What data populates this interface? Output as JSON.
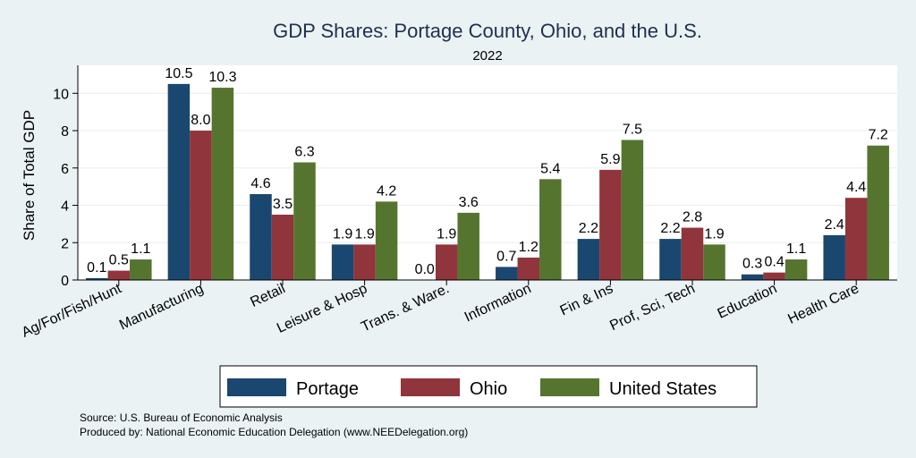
{
  "colors": {
    "background": "#eaf2f3",
    "plot_background": "#ffffff",
    "portage": "#1a476f",
    "ohio": "#90353b",
    "united_states": "#55752f",
    "title": "#1e3050"
  },
  "chart_data": {
    "type": "bar",
    "title": "GDP Shares: Portage County, Ohio, and the U.S.",
    "subtitle": "2022",
    "ylabel": "Share of Total GDP",
    "xlabel": "",
    "ylim": [
      0,
      11.5
    ],
    "yticks": [
      0,
      2,
      4,
      6,
      8,
      10
    ],
    "grid": true,
    "legend_position": "bottom",
    "categories": [
      "Ag/For/Fish/Hunt",
      "Manufacturing",
      "Retail",
      "Leisure & Hosp",
      "Trans. & Ware.",
      "Information",
      "Fin & Ins",
      "Prof, Sci, Tech",
      "Education",
      "Health Care"
    ],
    "series": [
      {
        "name": "Portage",
        "values": [
          0.1,
          10.5,
          4.6,
          1.9,
          0.0,
          0.7,
          2.2,
          2.2,
          0.3,
          2.4
        ]
      },
      {
        "name": "Ohio",
        "values": [
          0.5,
          8.0,
          3.5,
          1.9,
          1.9,
          1.2,
          5.9,
          2.8,
          0.4,
          4.4
        ]
      },
      {
        "name": "United States",
        "values": [
          1.1,
          10.3,
          6.3,
          4.2,
          3.6,
          5.4,
          7.5,
          1.9,
          1.1,
          7.2
        ]
      }
    ]
  },
  "notes": {
    "source": "Source: U.S. Bureau of Economic Analysis",
    "produced_by": "Produced by: National Economic Education Delegation (www.NEEDelegation.org)"
  }
}
